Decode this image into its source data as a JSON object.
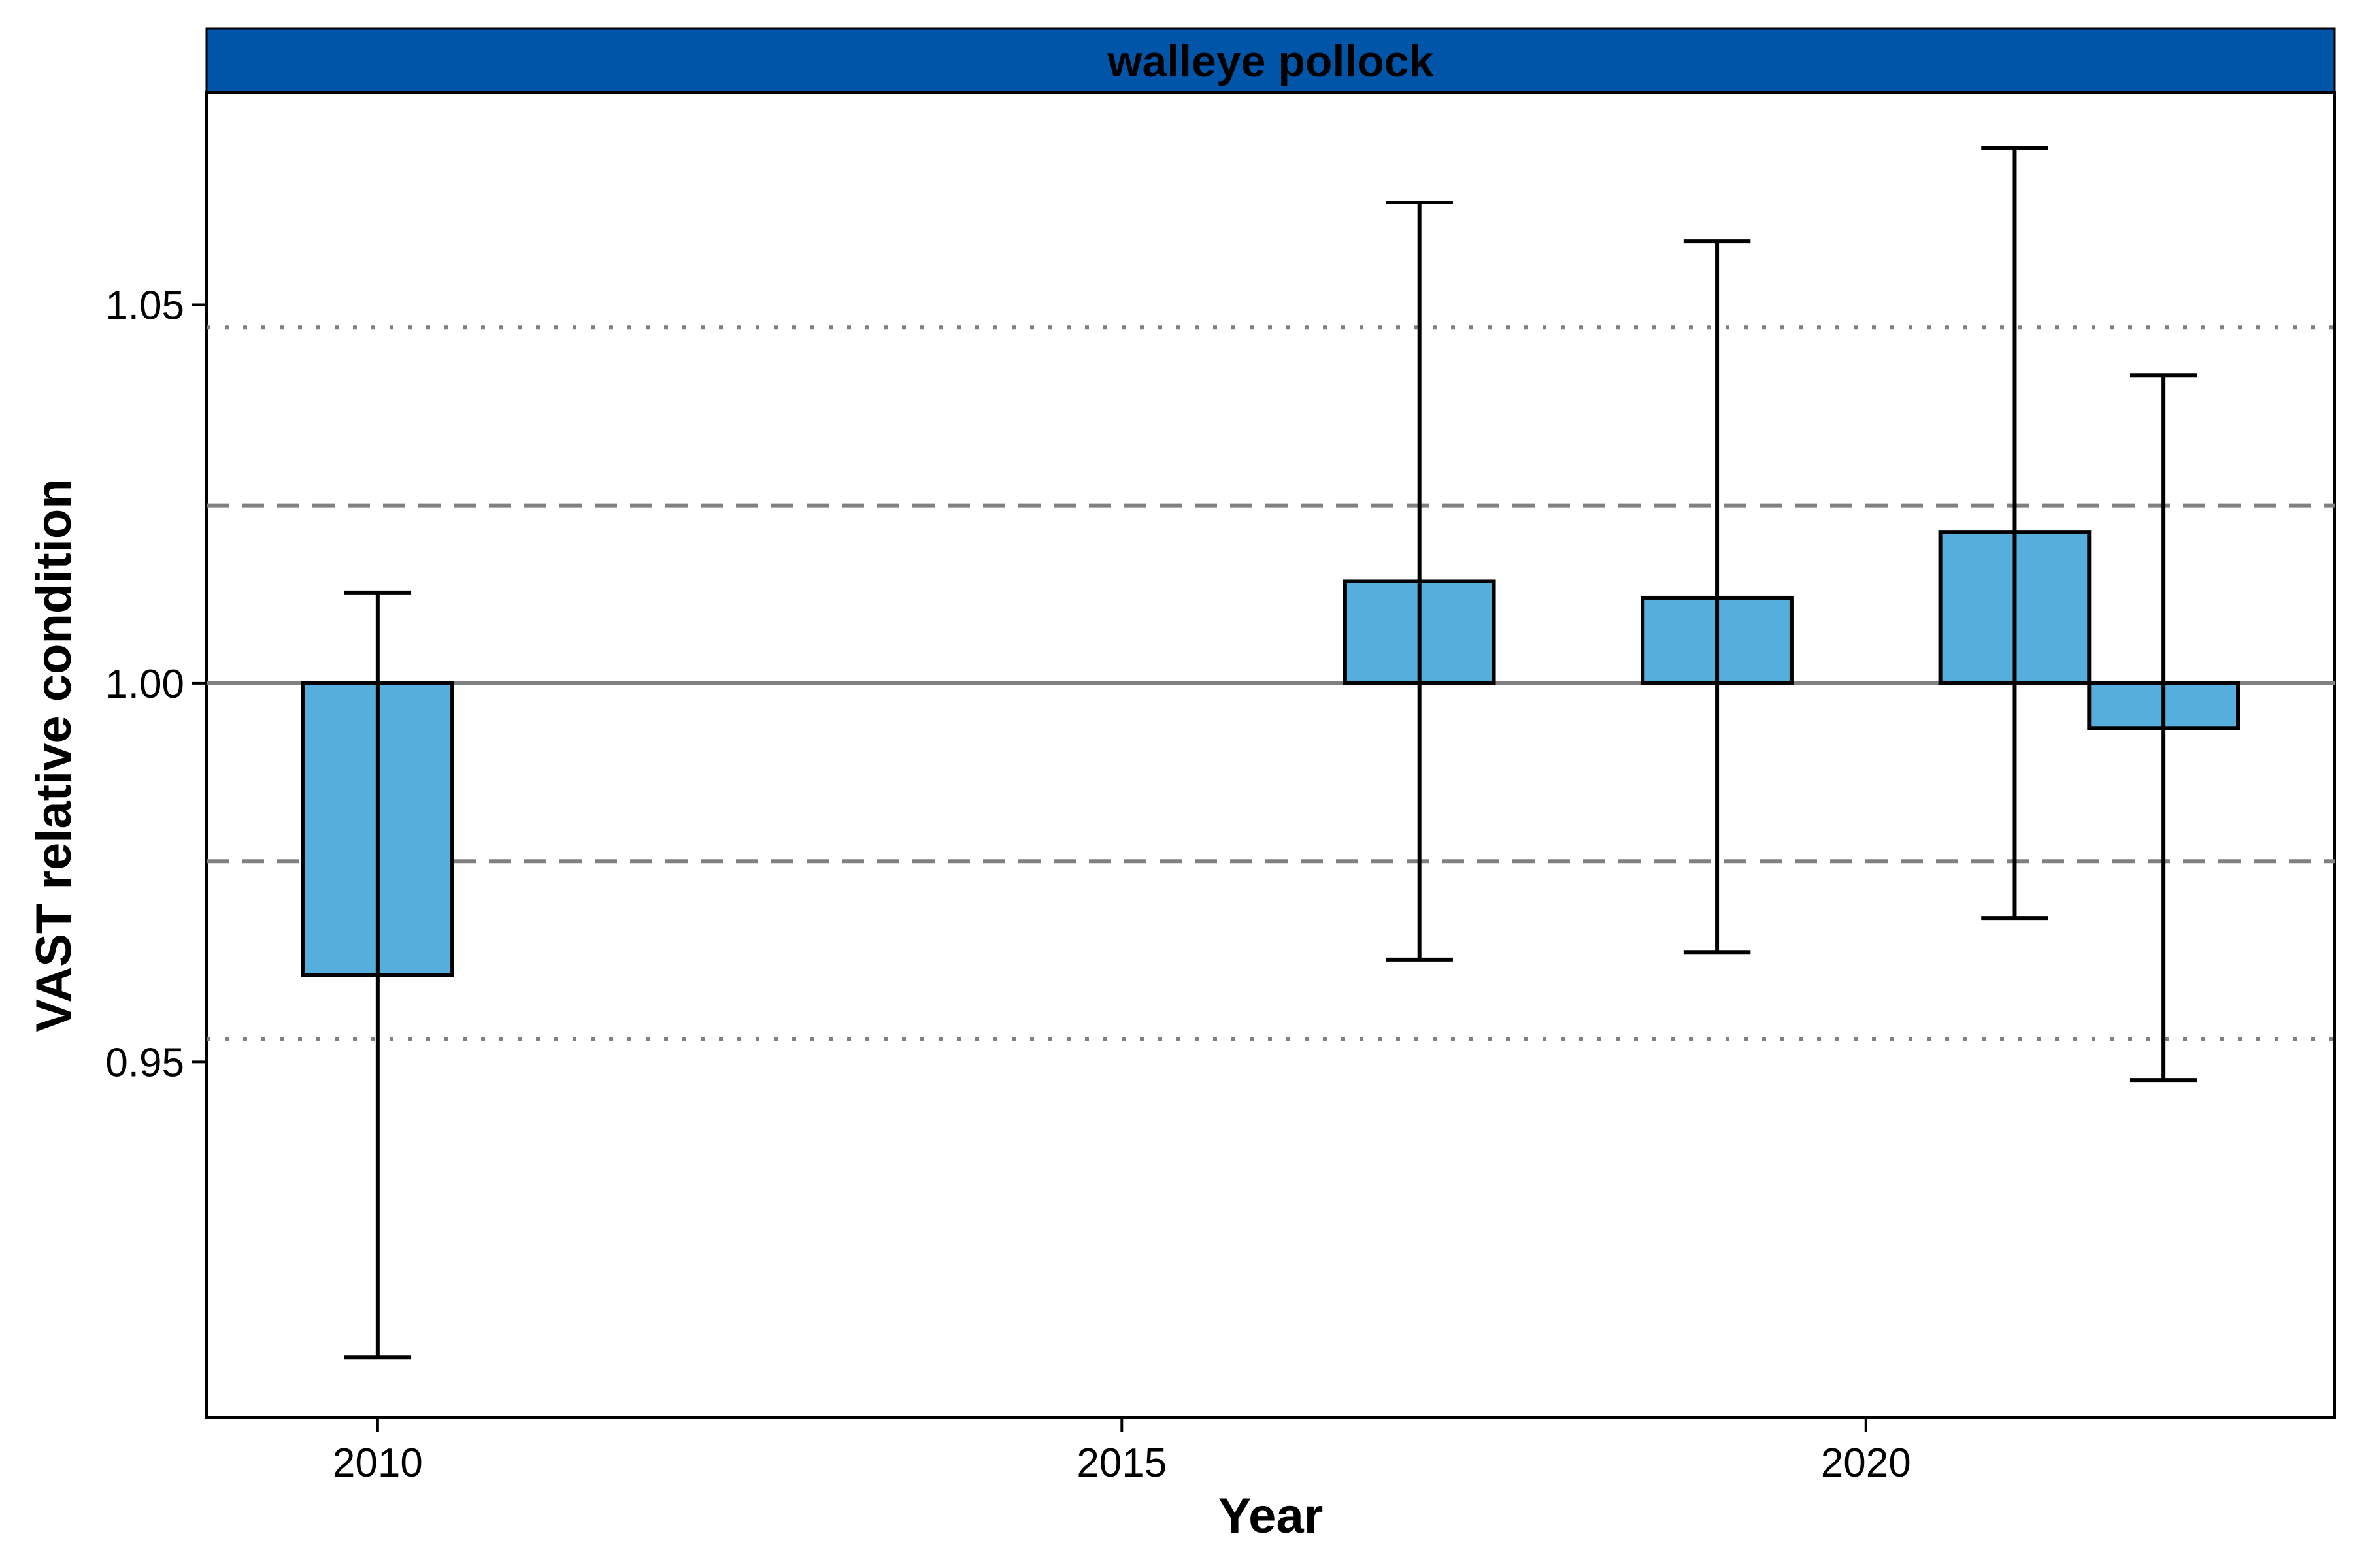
{
  "chart_data": {
    "type": "bar",
    "panel_title": "walleye pollock",
    "xlabel": "Year",
    "ylabel": "VAST relative condition",
    "baseline": 1.0,
    "xlim": [
      2008.85,
      2023.15
    ],
    "ylim": [
      0.903,
      1.078
    ],
    "x_ticks": [
      {
        "value": 2010,
        "label": "2010"
      },
      {
        "value": 2015,
        "label": "2015"
      },
      {
        "value": 2020,
        "label": "2020"
      }
    ],
    "y_ticks": [
      {
        "value": 0.95,
        "label": "0.95"
      },
      {
        "value": 1.0,
        "label": "1.00"
      },
      {
        "value": 1.05,
        "label": "1.05"
      }
    ],
    "bar_width_years": 1.0,
    "bars": [
      {
        "x": 2010,
        "value": 0.9615,
        "lower": 0.911,
        "upper": 1.012
      },
      {
        "x": 2017,
        "value": 1.0135,
        "lower": 0.9635,
        "upper": 1.0635
      },
      {
        "x": 2019,
        "value": 1.0113,
        "lower": 0.9645,
        "upper": 1.0584
      },
      {
        "x": 2021,
        "value": 1.02,
        "lower": 0.969,
        "upper": 1.0707
      },
      {
        "x": 2022,
        "value": 0.9941,
        "lower": 0.9476,
        "upper": 1.0407
      }
    ],
    "reference_lines": [
      {
        "value": 1.0,
        "style": "solid"
      },
      {
        "value": 1.0235,
        "style": "dashed"
      },
      {
        "value": 0.9765,
        "style": "dashed"
      },
      {
        "value": 1.047,
        "style": "dotted"
      },
      {
        "value": 0.953,
        "style": "dotted"
      }
    ],
    "colors": {
      "bar_fill": "#56aedc",
      "bar_stroke": "#000000",
      "strip_fill": "#0055a8",
      "strip_text": "#ffffff",
      "reference_line": "#808080",
      "errorbar": "#000000"
    },
    "grid": false,
    "legend": "none"
  }
}
